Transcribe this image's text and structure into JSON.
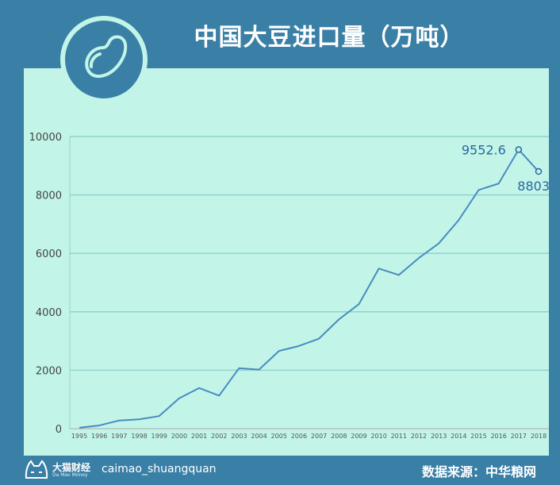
{
  "title": "中国大豆进口量（万吨）",
  "footer": {
    "brand_name": "大猫财经",
    "brand_sub": "Da Mao Money",
    "handle": "caimao_shuangquan",
    "source": "数据来源：中华粮网"
  },
  "icons": {
    "logo": "bean-icon",
    "brand": "cat-face-icon"
  },
  "colors": {
    "frame": "#3a7fa6",
    "panel": "#c2f5e8",
    "line": "#4a8bbf",
    "grid": "#8fd4cc",
    "label": "#2a67a0"
  },
  "chart_data": {
    "type": "line",
    "title": "中国大豆进口量（万吨）",
    "xlabel": "",
    "ylabel": "",
    "ylim": [
      0,
      10000
    ],
    "yticks": [
      "0",
      "2000",
      "4000",
      "6000",
      "8000",
      "10000"
    ],
    "grid": true,
    "x": [
      "1995",
      "1996",
      "1997",
      "1998",
      "1999",
      "2000",
      "2001",
      "2002",
      "2003",
      "2004",
      "2005",
      "2006",
      "2007",
      "2008",
      "2009",
      "2010",
      "2011",
      "2012",
      "2013",
      "2014",
      "2015",
      "2016",
      "2017",
      "2018"
    ],
    "series": [
      {
        "values": [
          30,
          110,
          280,
          320,
          430,
          1040,
          1390,
          1130,
          2070,
          2020,
          2660,
          2830,
          3080,
          3740,
          4260,
          5480,
          5260,
          5840,
          6340,
          7140,
          8170,
          8390,
          9552.6,
          8803
        ]
      }
    ],
    "annotations": [
      {
        "x": "2017",
        "text": "9552.6"
      },
      {
        "x": "2018",
        "text": "8803"
      }
    ]
  }
}
